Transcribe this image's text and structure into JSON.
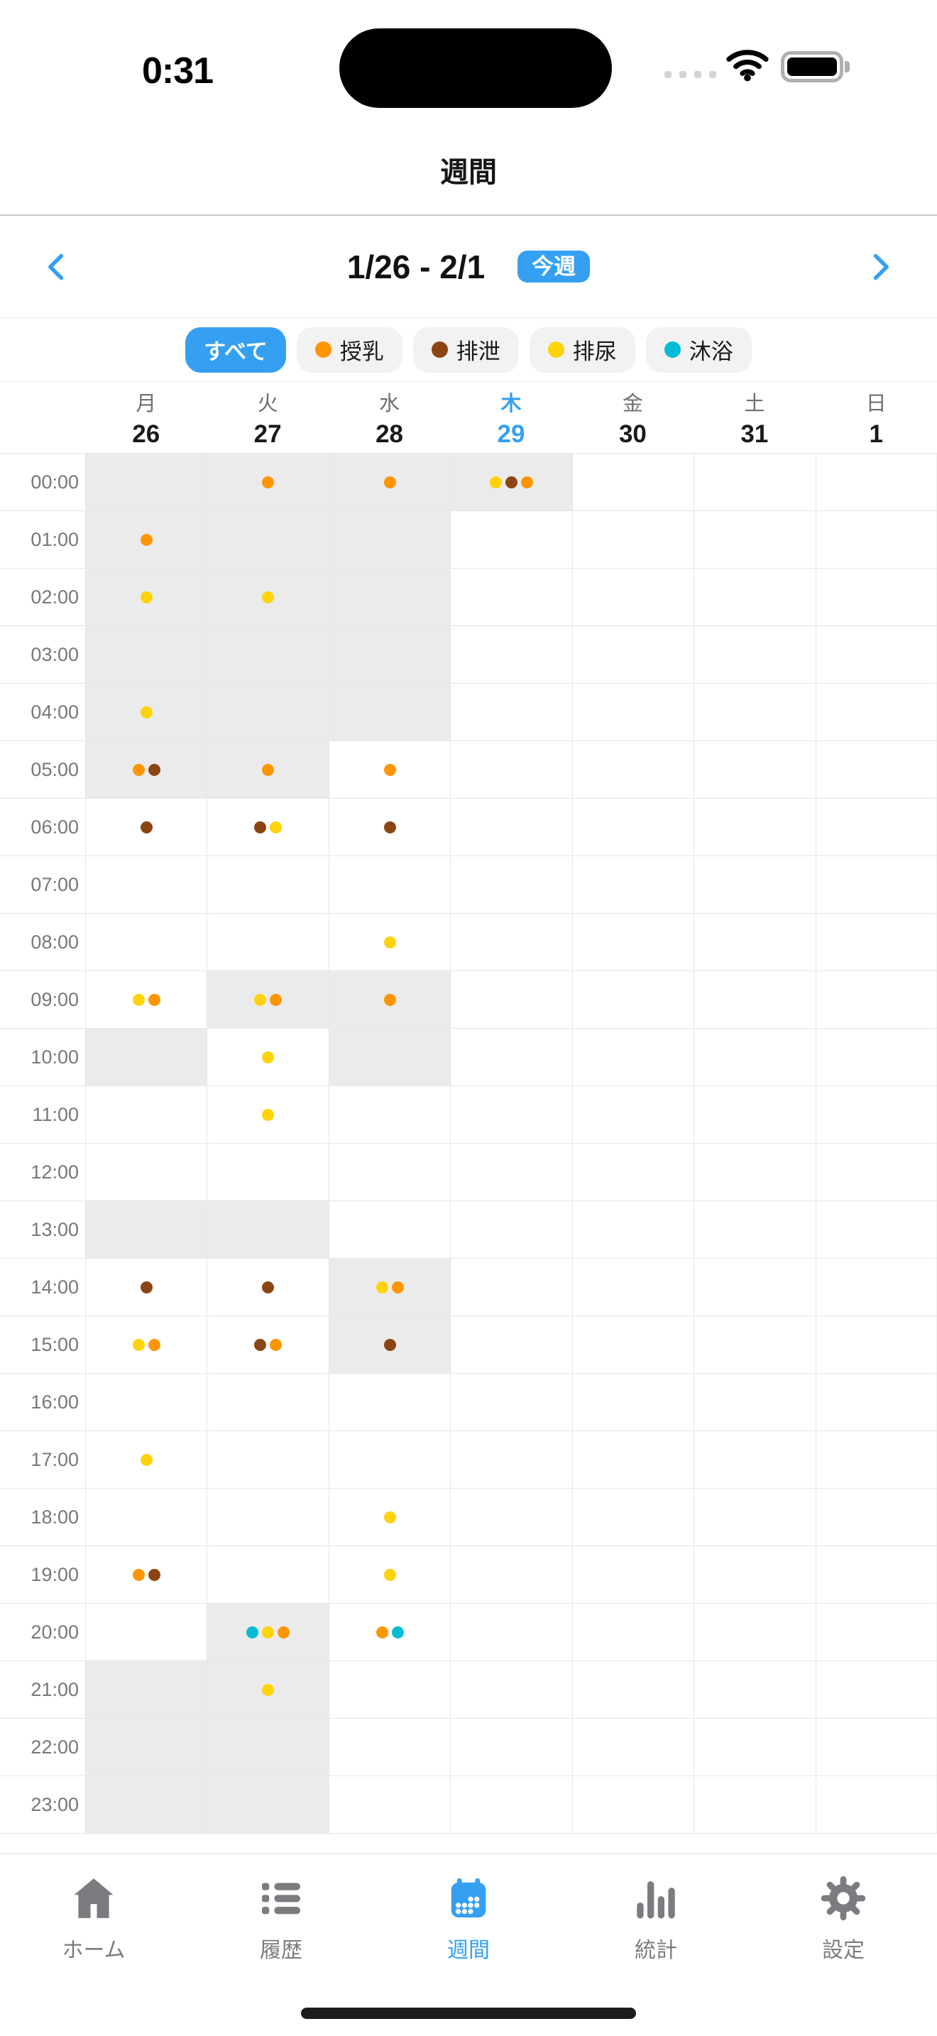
{
  "status_bar": {
    "time": "0:31",
    "icons": [
      "cellular-signal-icon",
      "wifi-icon",
      "battery-icon"
    ]
  },
  "header": {
    "title": "週間"
  },
  "week_nav": {
    "range": "1/26 - 2/1",
    "badge": "今週"
  },
  "filters": [
    {
      "key": "all",
      "label": "すべて",
      "selected": true,
      "color": null
    },
    {
      "key": "feeding",
      "label": "授乳",
      "selected": false,
      "color": "#FF9500"
    },
    {
      "key": "excretion",
      "label": "排泄",
      "selected": false,
      "color": "#8B4513"
    },
    {
      "key": "urination",
      "label": "排尿",
      "selected": false,
      "color": "#FFD30A"
    },
    {
      "key": "bath",
      "label": "沐浴",
      "selected": false,
      "color": "#00BCD4"
    }
  ],
  "calendar": {
    "days": [
      {
        "key": "mon",
        "weekday": "月",
        "date": "26",
        "today": false
      },
      {
        "key": "tue",
        "weekday": "火",
        "date": "27",
        "today": false
      },
      {
        "key": "wed",
        "weekday": "水",
        "date": "28",
        "today": false
      },
      {
        "key": "thu",
        "weekday": "木",
        "date": "29",
        "today": true
      },
      {
        "key": "fri",
        "weekday": "金",
        "date": "30",
        "today": false
      },
      {
        "key": "sat",
        "weekday": "土",
        "date": "31",
        "today": false
      },
      {
        "key": "sun",
        "weekday": "日",
        "date": "1",
        "today": false
      }
    ],
    "hours": [
      "00:00",
      "01:00",
      "02:00",
      "03:00",
      "04:00",
      "05:00",
      "06:00",
      "07:00",
      "08:00",
      "09:00",
      "10:00",
      "11:00",
      "12:00",
      "13:00",
      "14:00",
      "15:00",
      "16:00",
      "17:00",
      "18:00",
      "19:00",
      "20:00",
      "21:00",
      "22:00",
      "23:00"
    ],
    "dot_colors": {
      "feeding": "#FF9500",
      "excretion": "#8B4513",
      "urination": "#FFD30A",
      "bath": "#00BCD4"
    },
    "shaded_cells": [
      {
        "hour": 0,
        "day": 0
      },
      {
        "hour": 0,
        "day": 1
      },
      {
        "hour": 0,
        "day": 2
      },
      {
        "hour": 0,
        "day": 3
      },
      {
        "hour": 1,
        "day": 0
      },
      {
        "hour": 1,
        "day": 1
      },
      {
        "hour": 1,
        "day": 2
      },
      {
        "hour": 2,
        "day": 0
      },
      {
        "hour": 2,
        "day": 1
      },
      {
        "hour": 2,
        "day": 2
      },
      {
        "hour": 3,
        "day": 0
      },
      {
        "hour": 3,
        "day": 1
      },
      {
        "hour": 3,
        "day": 2
      },
      {
        "hour": 4,
        "day": 0
      },
      {
        "hour": 4,
        "day": 1
      },
      {
        "hour": 4,
        "day": 2
      },
      {
        "hour": 5,
        "day": 0
      },
      {
        "hour": 5,
        "day": 1
      },
      {
        "hour": 9,
        "day": 1
      },
      {
        "hour": 9,
        "day": 2
      },
      {
        "hour": 10,
        "day": 0
      },
      {
        "hour": 10,
        "day": 2
      },
      {
        "hour": 13,
        "day": 0
      },
      {
        "hour": 13,
        "day": 1
      },
      {
        "hour": 14,
        "day": 2
      },
      {
        "hour": 15,
        "day": 2
      },
      {
        "hour": 20,
        "day": 1
      },
      {
        "hour": 21,
        "day": 0
      },
      {
        "hour": 21,
        "day": 1
      },
      {
        "hour": 22,
        "day": 0
      },
      {
        "hour": 22,
        "day": 1
      },
      {
        "hour": 23,
        "day": 0
      },
      {
        "hour": 23,
        "day": 1
      }
    ],
    "events": [
      {
        "hour": 0,
        "day": 1,
        "dots": [
          "feeding"
        ]
      },
      {
        "hour": 0,
        "day": 2,
        "dots": [
          "feeding"
        ]
      },
      {
        "hour": 0,
        "day": 3,
        "dots": [
          "urination",
          "excretion",
          "feeding"
        ]
      },
      {
        "hour": 1,
        "day": 0,
        "dots": [
          "feeding"
        ]
      },
      {
        "hour": 2,
        "day": 0,
        "dots": [
          "urination"
        ]
      },
      {
        "hour": 2,
        "day": 1,
        "dots": [
          "urination"
        ]
      },
      {
        "hour": 4,
        "day": 0,
        "dots": [
          "urination"
        ]
      },
      {
        "hour": 5,
        "day": 0,
        "dots": [
          "feeding",
          "excretion"
        ]
      },
      {
        "hour": 5,
        "day": 1,
        "dots": [
          "feeding"
        ]
      },
      {
        "hour": 5,
        "day": 2,
        "dots": [
          "feeding"
        ]
      },
      {
        "hour": 6,
        "day": 0,
        "dots": [
          "excretion"
        ]
      },
      {
        "hour": 6,
        "day": 1,
        "dots": [
          "excretion",
          "urination"
        ]
      },
      {
        "hour": 6,
        "day": 2,
        "dots": [
          "excretion"
        ]
      },
      {
        "hour": 8,
        "day": 2,
        "dots": [
          "urination"
        ]
      },
      {
        "hour": 9,
        "day": 0,
        "dots": [
          "urination",
          "feeding"
        ]
      },
      {
        "hour": 9,
        "day": 1,
        "dots": [
          "urination",
          "feeding"
        ]
      },
      {
        "hour": 9,
        "day": 2,
        "dots": [
          "feeding"
        ]
      },
      {
        "hour": 10,
        "day": 1,
        "dots": [
          "urination"
        ]
      },
      {
        "hour": 11,
        "day": 1,
        "dots": [
          "urination"
        ]
      },
      {
        "hour": 14,
        "day": 0,
        "dots": [
          "excretion"
        ]
      },
      {
        "hour": 14,
        "day": 1,
        "dots": [
          "excretion"
        ]
      },
      {
        "hour": 14,
        "day": 2,
        "dots": [
          "urination",
          "feeding"
        ]
      },
      {
        "hour": 15,
        "day": 0,
        "dots": [
          "urination",
          "feeding"
        ]
      },
      {
        "hour": 15,
        "day": 1,
        "dots": [
          "excretion",
          "feeding"
        ]
      },
      {
        "hour": 15,
        "day": 2,
        "dots": [
          "excretion"
        ]
      },
      {
        "hour": 17,
        "day": 0,
        "dots": [
          "urination"
        ]
      },
      {
        "hour": 18,
        "day": 2,
        "dots": [
          "urination"
        ]
      },
      {
        "hour": 19,
        "day": 0,
        "dots": [
          "feeding",
          "excretion"
        ]
      },
      {
        "hour": 19,
        "day": 2,
        "dots": [
          "urination"
        ]
      },
      {
        "hour": 20,
        "day": 1,
        "dots": [
          "bath",
          "urination",
          "feeding"
        ]
      },
      {
        "hour": 20,
        "day": 2,
        "dots": [
          "feeding",
          "bath"
        ]
      },
      {
        "hour": 21,
        "day": 1,
        "dots": [
          "urination"
        ]
      }
    ]
  },
  "tab_bar": {
    "items": [
      {
        "key": "home",
        "label": "ホーム",
        "icon": "home-icon",
        "active": false
      },
      {
        "key": "history",
        "label": "履歴",
        "icon": "list-icon",
        "active": false
      },
      {
        "key": "weekly",
        "label": "週間",
        "icon": "calendar-icon",
        "active": true
      },
      {
        "key": "stats",
        "label": "統計",
        "icon": "bar-chart-icon",
        "active": false
      },
      {
        "key": "settings",
        "label": "設定",
        "icon": "gear-icon",
        "active": false
      }
    ]
  },
  "colors": {
    "accent": "#35A0F2",
    "shaded_cell": "#EBEBEC",
    "grid_line": "#E6E6E8"
  }
}
